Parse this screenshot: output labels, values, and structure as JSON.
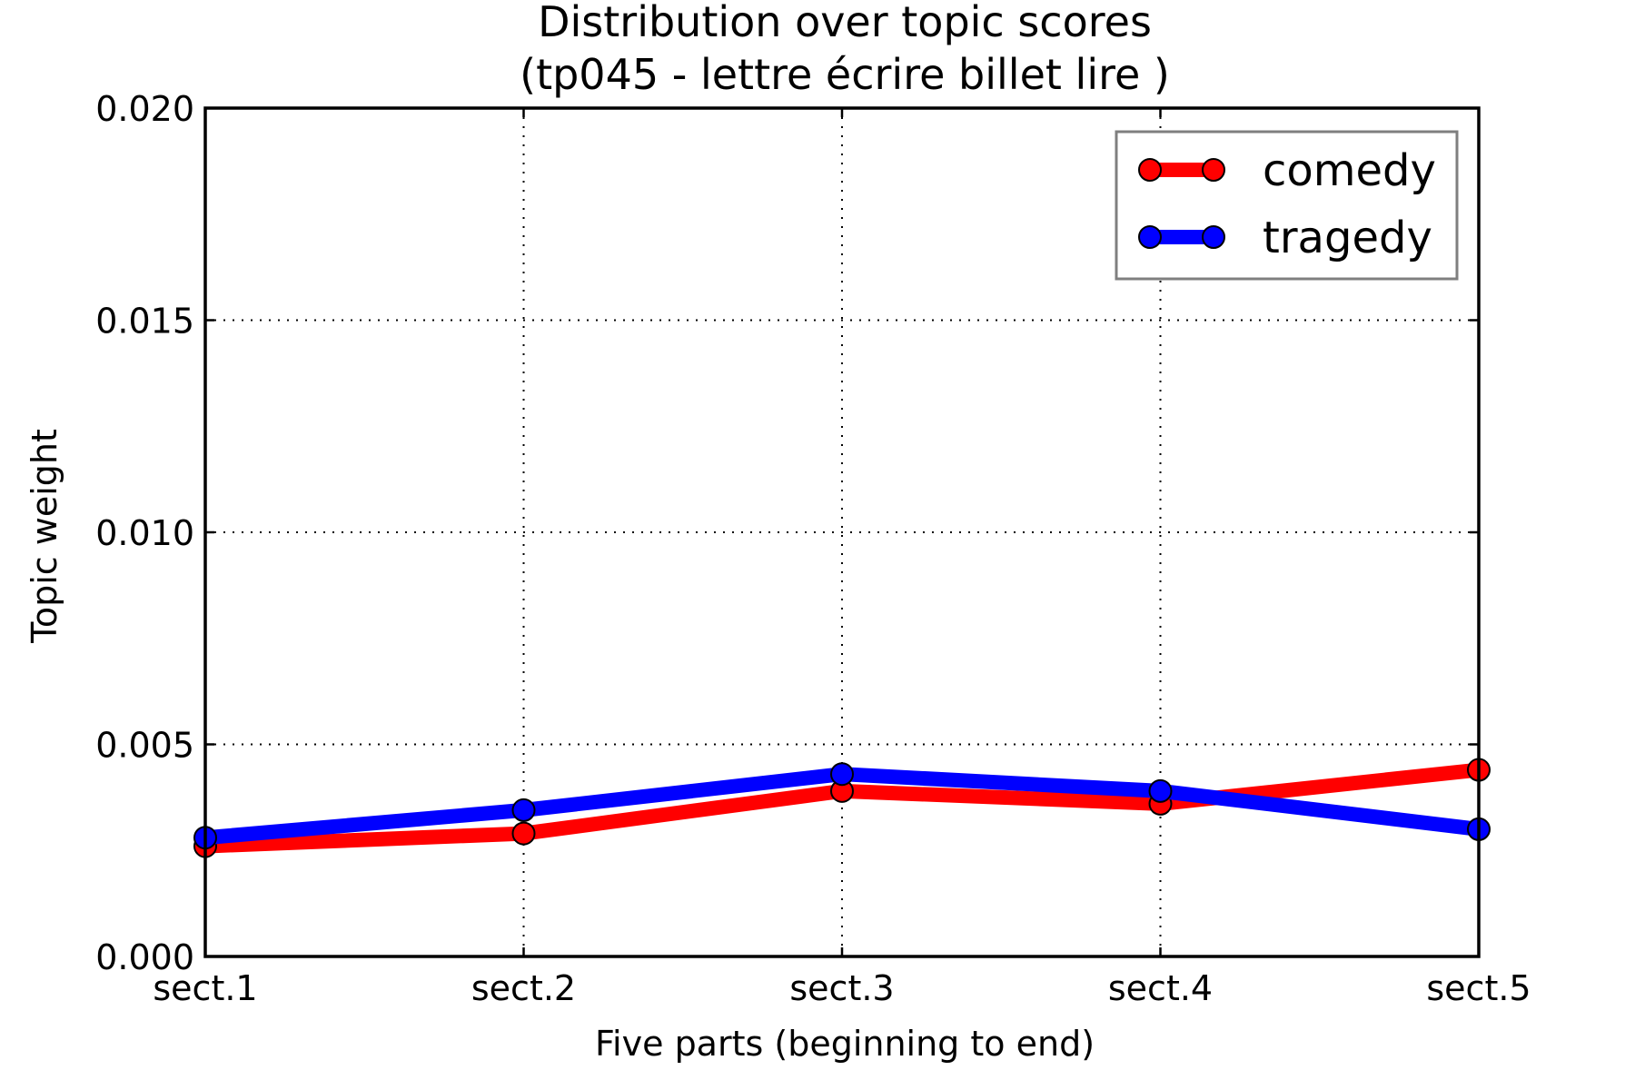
{
  "chart_data": {
    "type": "line",
    "title": "Distribution over topic scores",
    "subtitle": "(tp045 - lettre écrire billet lire )",
    "xlabel": "Five parts (beginning to end)",
    "ylabel": "Topic weight",
    "categories": [
      "sect.1",
      "sect.2",
      "sect.3",
      "sect.4",
      "sect.5"
    ],
    "ylim": [
      0,
      0.02
    ],
    "yticks": [
      "0.000",
      "0.005",
      "0.010",
      "0.015",
      "0.020"
    ],
    "grid": true,
    "legend_position": "top-right",
    "series": [
      {
        "name": "comedy",
        "color": "#ff0000",
        "values": [
          0.0026,
          0.0029,
          0.0039,
          0.0036,
          0.0044
        ]
      },
      {
        "name": "tragedy",
        "color": "#0000ff",
        "values": [
          0.0028,
          0.00345,
          0.0043,
          0.0039,
          0.003
        ]
      }
    ]
  }
}
